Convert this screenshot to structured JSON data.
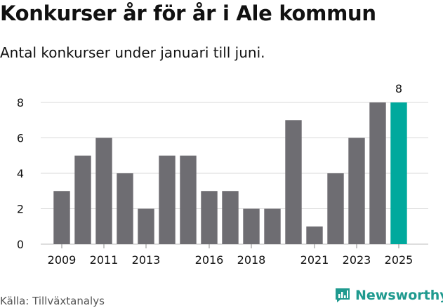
{
  "title": "Konkurser år för år i Ale kommun",
  "subtitle": "Antal konkurser under januari till juni.",
  "source": "Källa: Tillväxtanalys",
  "brand": {
    "name": "Newsworthy",
    "icon": "bar-chart-logo-icon"
  },
  "colors": {
    "bar": "#6e6d72",
    "highlight": "#00a99d",
    "brand": "#1f9a8f",
    "grid": "#d9d9d9"
  },
  "chart_data": {
    "type": "bar",
    "categories": [
      "2009",
      "2010",
      "2011",
      "2012",
      "2013",
      "2014",
      "2015",
      "2016",
      "2017",
      "2018",
      "2019",
      "2020",
      "2021",
      "2022",
      "2023",
      "2024",
      "2025"
    ],
    "values": [
      3,
      5,
      6,
      4,
      2,
      5,
      5,
      3,
      3,
      2,
      2,
      7,
      1,
      4,
      6,
      8,
      8
    ],
    "x_tick_labels": [
      "2009",
      "2011",
      "2013",
      "2016",
      "2018",
      "2021",
      "2023",
      "2025"
    ],
    "y_ticks": [
      0,
      2,
      4,
      6,
      8
    ],
    "ylim": [
      0,
      8
    ],
    "highlight_category": "2025",
    "value_labels": [
      {
        "category": "2025",
        "label": "8"
      }
    ],
    "grid": true,
    "xlabel": "",
    "ylabel": ""
  }
}
